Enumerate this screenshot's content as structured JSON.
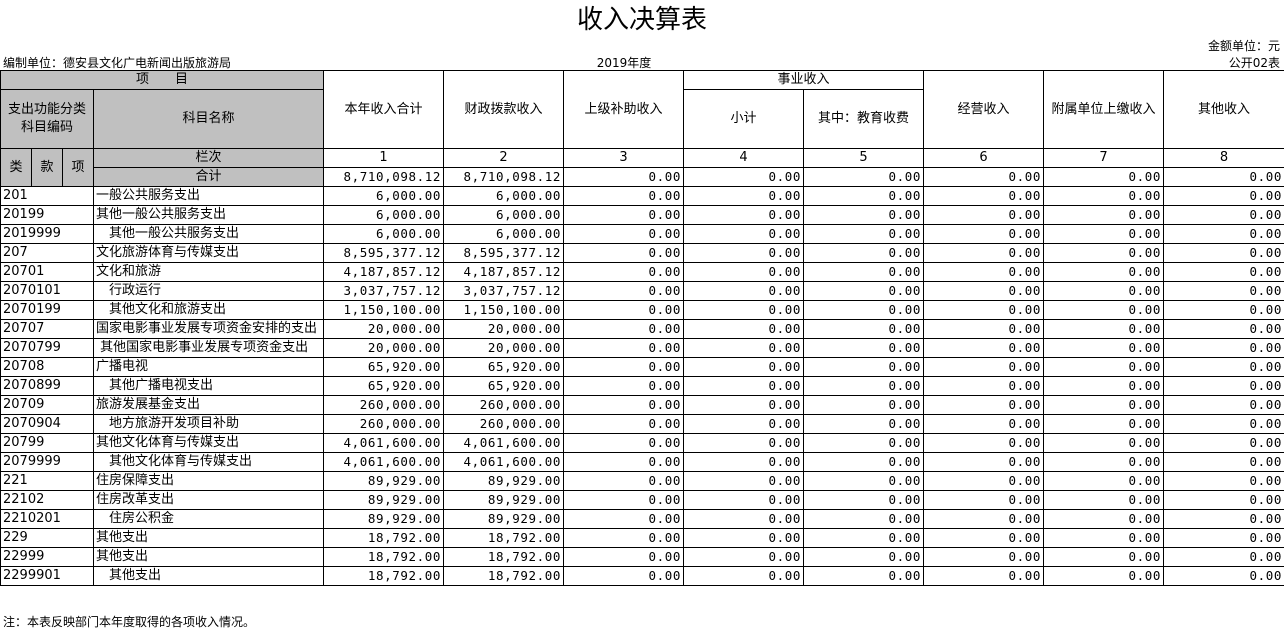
{
  "title": "收入决算表",
  "unit": "金额单位：元",
  "org": "编制单位：德安县文化广电新闻出版旅游局",
  "year": "2019年度",
  "form_no": "公开02表",
  "header": {
    "item": "项　　目",
    "code": "支出功能分类科目编码",
    "name": "科目名称",
    "columns": [
      "本年收入合计",
      "财政拨款收入",
      "上级补助收入",
      "事业收入",
      "经营收入",
      "附属单位上缴收入",
      "其他收入"
    ],
    "subtotal": "小计",
    "education": "其中：教育收费",
    "lei": "类",
    "kuan": "款",
    "xiang": "项",
    "lanci": "栏次",
    "col_numbers": [
      "1",
      "2",
      "3",
      "4",
      "5",
      "6",
      "7",
      "8"
    ],
    "total_label": "合计",
    "total_values": [
      "8,710,098.12",
      "8,710,098.12",
      "0.00",
      "0.00",
      "0.00",
      "0.00",
      "0.00",
      "0.00"
    ]
  },
  "rows": [
    {
      "code": "201",
      "name": "一般公共服务支出",
      "values": [
        "6,000.00",
        "6,000.00",
        "0.00",
        "0.00",
        "0.00",
        "0.00",
        "0.00",
        "0.00"
      ]
    },
    {
      "code": "20199",
      "name": "其他一般公共服务支出",
      "values": [
        "6,000.00",
        "6,000.00",
        "0.00",
        "0.00",
        "0.00",
        "0.00",
        "0.00",
        "0.00"
      ]
    },
    {
      "code": "2019999",
      "name": "　其他一般公共服务支出",
      "values": [
        "6,000.00",
        "6,000.00",
        "0.00",
        "0.00",
        "0.00",
        "0.00",
        "0.00",
        "0.00"
      ]
    },
    {
      "code": "207",
      "name": "文化旅游体育与传媒支出",
      "values": [
        "8,595,377.12",
        "8,595,377.12",
        "0.00",
        "0.00",
        "0.00",
        "0.00",
        "0.00",
        "0.00"
      ]
    },
    {
      "code": "20701",
      "name": "文化和旅游",
      "values": [
        "4,187,857.12",
        "4,187,857.12",
        "0.00",
        "0.00",
        "0.00",
        "0.00",
        "0.00",
        "0.00"
      ]
    },
    {
      "code": "2070101",
      "name": "　行政运行",
      "values": [
        "3,037,757.12",
        "3,037,757.12",
        "0.00",
        "0.00",
        "0.00",
        "0.00",
        "0.00",
        "0.00"
      ]
    },
    {
      "code": "2070199",
      "name": "　其他文化和旅游支出",
      "values": [
        "1,150,100.00",
        "1,150,100.00",
        "0.00",
        "0.00",
        "0.00",
        "0.00",
        "0.00",
        "0.00"
      ]
    },
    {
      "code": "20707",
      "name": "国家电影事业发展专项资金安排的支出",
      "values": [
        "20,000.00",
        "20,000.00",
        "0.00",
        "0.00",
        "0.00",
        "0.00",
        "0.00",
        "0.00"
      ]
    },
    {
      "code": "2070799",
      "name": " 其他国家电影事业发展专项资金支出",
      "values": [
        "20,000.00",
        "20,000.00",
        "0.00",
        "0.00",
        "0.00",
        "0.00",
        "0.00",
        "0.00"
      ]
    },
    {
      "code": "20708",
      "name": "广播电视",
      "values": [
        "65,920.00",
        "65,920.00",
        "0.00",
        "0.00",
        "0.00",
        "0.00",
        "0.00",
        "0.00"
      ]
    },
    {
      "code": "2070899",
      "name": "　其他广播电视支出",
      "values": [
        "65,920.00",
        "65,920.00",
        "0.00",
        "0.00",
        "0.00",
        "0.00",
        "0.00",
        "0.00"
      ]
    },
    {
      "code": "20709",
      "name": "旅游发展基金支出",
      "values": [
        "260,000.00",
        "260,000.00",
        "0.00",
        "0.00",
        "0.00",
        "0.00",
        "0.00",
        "0.00"
      ]
    },
    {
      "code": "2070904",
      "name": "　地方旅游开发项目补助",
      "values": [
        "260,000.00",
        "260,000.00",
        "0.00",
        "0.00",
        "0.00",
        "0.00",
        "0.00",
        "0.00"
      ]
    },
    {
      "code": "20799",
      "name": "其他文化体育与传媒支出",
      "values": [
        "4,061,600.00",
        "4,061,600.00",
        "0.00",
        "0.00",
        "0.00",
        "0.00",
        "0.00",
        "0.00"
      ]
    },
    {
      "code": "2079999",
      "name": "　其他文化体育与传媒支出",
      "values": [
        "4,061,600.00",
        "4,061,600.00",
        "0.00",
        "0.00",
        "0.00",
        "0.00",
        "0.00",
        "0.00"
      ]
    },
    {
      "code": "221",
      "name": "住房保障支出",
      "values": [
        "89,929.00",
        "89,929.00",
        "0.00",
        "0.00",
        "0.00",
        "0.00",
        "0.00",
        "0.00"
      ]
    },
    {
      "code": "22102",
      "name": "住房改革支出",
      "values": [
        "89,929.00",
        "89,929.00",
        "0.00",
        "0.00",
        "0.00",
        "0.00",
        "0.00",
        "0.00"
      ]
    },
    {
      "code": "2210201",
      "name": "　住房公积金",
      "values": [
        "89,929.00",
        "89,929.00",
        "0.00",
        "0.00",
        "0.00",
        "0.00",
        "0.00",
        "0.00"
      ]
    },
    {
      "code": "229",
      "name": "其他支出",
      "values": [
        "18,792.00",
        "18,792.00",
        "0.00",
        "0.00",
        "0.00",
        "0.00",
        "0.00",
        "0.00"
      ]
    },
    {
      "code": "22999",
      "name": "其他支出",
      "values": [
        "18,792.00",
        "18,792.00",
        "0.00",
        "0.00",
        "0.00",
        "0.00",
        "0.00",
        "0.00"
      ]
    },
    {
      "code": "2299901",
      "name": "　其他支出",
      "values": [
        "18,792.00",
        "18,792.00",
        "0.00",
        "0.00",
        "0.00",
        "0.00",
        "0.00",
        "0.00"
      ]
    }
  ],
  "note": "注：本表反映部门本年度取得的各项收入情况。"
}
